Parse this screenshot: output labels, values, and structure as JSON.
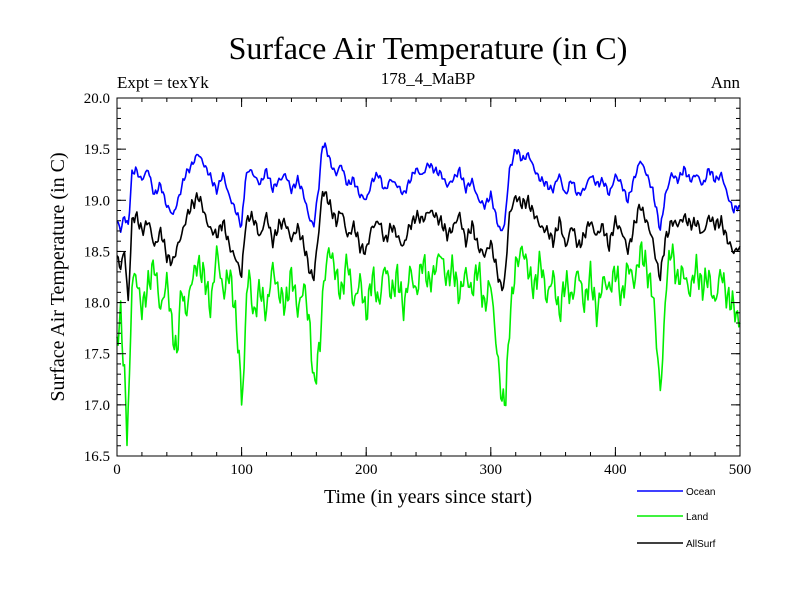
{
  "chart_data": {
    "type": "line",
    "title": "Surface Air Temperature (in C)",
    "subtitle_left": "Expt = texYk",
    "subtitle_center": "178_4_MaBP",
    "subtitle_right": "Ann",
    "xlabel": "Time (in years since start)",
    "ylabel": "Surface Air Temperature (in C)",
    "xlim": [
      0,
      500
    ],
    "ylim": [
      16.5,
      20.0
    ],
    "xticks": [
      0,
      100,
      200,
      300,
      400,
      500
    ],
    "yticks": [
      "16.5",
      "17.0",
      "17.5",
      "18.0",
      "18.5",
      "19.0",
      "19.5",
      "20.0"
    ],
    "grid": false,
    "legend_position": "bottom-right, below plot",
    "series": [
      {
        "name": "Ocean",
        "color": "#0000ff",
        "x": [
          0,
          3,
          6,
          9,
          12,
          15,
          20,
          25,
          30,
          35,
          40,
          45,
          50,
          55,
          60,
          65,
          68,
          72,
          76,
          80,
          85,
          90,
          95,
          100,
          103,
          106,
          110,
          115,
          120,
          125,
          130,
          135,
          140,
          145,
          150,
          155,
          158,
          162,
          165,
          168,
          172,
          176,
          180,
          185,
          190,
          195,
          200,
          205,
          210,
          215,
          220,
          225,
          230,
          235,
          240,
          245,
          250,
          255,
          260,
          265,
          270,
          275,
          280,
          285,
          290,
          295,
          300,
          305,
          308,
          311,
          315,
          320,
          325,
          330,
          335,
          340,
          345,
          350,
          355,
          360,
          365,
          370,
          375,
          380,
          385,
          390,
          395,
          400,
          405,
          410,
          415,
          420,
          425,
          430,
          433,
          436,
          440,
          445,
          450,
          455,
          460,
          465,
          470,
          475,
          480,
          485,
          490,
          495,
          500
        ],
        "y": [
          18.8,
          18.7,
          18.85,
          18.75,
          19.25,
          19.3,
          19.2,
          19.3,
          19.05,
          19.15,
          18.95,
          18.85,
          19.05,
          19.25,
          19.35,
          19.45,
          19.4,
          19.3,
          19.2,
          19.1,
          19.25,
          19.05,
          18.9,
          18.75,
          19.2,
          19.3,
          19.25,
          19.15,
          19.3,
          19.1,
          19.2,
          19.25,
          19.1,
          19.2,
          19.05,
          18.8,
          18.75,
          19.15,
          19.55,
          19.5,
          19.35,
          19.25,
          19.35,
          19.15,
          19.2,
          19.05,
          19.0,
          19.2,
          19.25,
          19.1,
          19.2,
          19.15,
          19.05,
          19.2,
          19.3,
          19.25,
          19.35,
          19.3,
          19.25,
          19.15,
          19.2,
          19.3,
          19.1,
          19.2,
          19.0,
          18.95,
          19.05,
          18.8,
          18.7,
          18.75,
          19.3,
          19.5,
          19.4,
          19.45,
          19.3,
          19.2,
          19.15,
          19.1,
          19.25,
          19.05,
          19.2,
          19.05,
          19.1,
          19.25,
          19.15,
          19.2,
          19.05,
          19.25,
          19.15,
          19.0,
          19.2,
          19.4,
          19.25,
          19.1,
          18.9,
          18.7,
          19.05,
          19.25,
          19.2,
          19.3,
          19.2,
          19.25,
          19.15,
          19.3,
          19.2,
          19.25,
          19.05,
          18.9,
          18.95
        ]
      },
      {
        "name": "Land",
        "color": "#00ee00",
        "x": [
          0,
          3,
          6,
          8,
          10,
          12,
          15,
          20,
          25,
          30,
          35,
          40,
          45,
          48,
          52,
          55,
          60,
          65,
          70,
          75,
          80,
          85,
          90,
          95,
          98,
          100,
          102,
          104,
          106,
          110,
          115,
          120,
          125,
          130,
          135,
          140,
          145,
          150,
          155,
          158,
          160,
          163,
          166,
          170,
          175,
          180,
          185,
          190,
          195,
          200,
          205,
          210,
          215,
          220,
          225,
          230,
          235,
          240,
          245,
          250,
          255,
          260,
          265,
          270,
          275,
          280,
          285,
          290,
          295,
          300,
          303,
          306,
          309,
          312,
          315,
          320,
          325,
          330,
          335,
          340,
          345,
          350,
          355,
          360,
          365,
          370,
          375,
          380,
          385,
          390,
          395,
          400,
          405,
          410,
          415,
          420,
          425,
          430,
          433,
          436,
          438,
          441,
          445,
          450,
          455,
          460,
          465,
          470,
          475,
          480,
          485,
          490,
          495,
          500
        ],
        "y": [
          17.6,
          17.9,
          17.3,
          16.7,
          17.2,
          18.2,
          18.3,
          17.9,
          18.2,
          18.35,
          17.95,
          18.2,
          17.7,
          17.5,
          18.15,
          17.9,
          18.2,
          18.4,
          18.25,
          17.95,
          18.5,
          18.1,
          18.3,
          17.9,
          17.5,
          17.05,
          17.3,
          18.1,
          18.3,
          17.85,
          18.15,
          17.9,
          18.35,
          18.1,
          17.95,
          18.3,
          17.9,
          18.2,
          17.7,
          17.2,
          17.35,
          17.6,
          18.2,
          18.55,
          18.3,
          18.1,
          18.4,
          18.0,
          18.2,
          17.9,
          18.25,
          18.0,
          18.35,
          18.1,
          18.25,
          17.95,
          18.3,
          18.1,
          18.4,
          18.2,
          18.3,
          18.5,
          18.2,
          18.35,
          18.05,
          18.3,
          18.1,
          18.35,
          17.95,
          18.2,
          17.8,
          17.4,
          17.0,
          17.1,
          17.8,
          18.35,
          18.55,
          18.3,
          18.15,
          18.4,
          18.05,
          18.25,
          17.9,
          18.2,
          18.05,
          18.3,
          18.0,
          18.25,
          17.9,
          18.2,
          18.15,
          18.3,
          18.05,
          18.35,
          18.2,
          18.5,
          18.35,
          18.1,
          17.6,
          17.15,
          17.5,
          18.2,
          18.55,
          18.2,
          18.3,
          18.1,
          18.35,
          18.15,
          18.25,
          18.0,
          18.3,
          18.05,
          17.95,
          17.8
        ]
      },
      {
        "name": "AllSurf",
        "color": "#000000",
        "x": [
          0,
          3,
          6,
          9,
          12,
          15,
          20,
          25,
          30,
          35,
          40,
          45,
          50,
          55,
          60,
          65,
          68,
          72,
          76,
          80,
          85,
          90,
          95,
          100,
          103,
          106,
          110,
          115,
          120,
          125,
          130,
          135,
          140,
          145,
          150,
          155,
          158,
          162,
          165,
          168,
          172,
          176,
          180,
          185,
          190,
          195,
          200,
          205,
          210,
          215,
          220,
          225,
          230,
          235,
          240,
          245,
          250,
          255,
          260,
          265,
          270,
          275,
          280,
          285,
          290,
          295,
          300,
          305,
          308,
          311,
          315,
          320,
          325,
          330,
          335,
          340,
          345,
          350,
          355,
          360,
          365,
          370,
          375,
          380,
          385,
          390,
          395,
          400,
          405,
          410,
          415,
          420,
          425,
          430,
          433,
          436,
          440,
          445,
          450,
          455,
          460,
          465,
          470,
          475,
          480,
          485,
          490,
          495,
          500
        ],
        "y": [
          18.45,
          18.35,
          18.5,
          18.0,
          18.8,
          18.85,
          18.7,
          18.8,
          18.55,
          18.7,
          18.45,
          18.4,
          18.6,
          18.8,
          18.95,
          19.05,
          18.95,
          18.8,
          18.7,
          18.65,
          18.8,
          18.55,
          18.45,
          18.25,
          18.75,
          18.85,
          18.8,
          18.65,
          18.85,
          18.6,
          18.75,
          18.8,
          18.6,
          18.75,
          18.55,
          18.3,
          18.25,
          18.7,
          19.1,
          19.05,
          18.9,
          18.8,
          18.9,
          18.65,
          18.75,
          18.55,
          18.5,
          18.75,
          18.8,
          18.6,
          18.75,
          18.65,
          18.55,
          18.75,
          18.85,
          18.8,
          18.9,
          18.85,
          18.8,
          18.65,
          18.75,
          18.85,
          18.6,
          18.75,
          18.55,
          18.45,
          18.6,
          18.3,
          18.15,
          18.2,
          18.85,
          19.05,
          18.95,
          19.0,
          18.85,
          18.75,
          18.7,
          18.6,
          18.8,
          18.55,
          18.75,
          18.55,
          18.65,
          18.8,
          18.65,
          18.75,
          18.55,
          18.8,
          18.7,
          18.5,
          18.75,
          18.95,
          18.8,
          18.6,
          18.4,
          18.25,
          18.6,
          18.8,
          18.75,
          18.85,
          18.75,
          18.8,
          18.65,
          18.85,
          18.75,
          18.8,
          18.6,
          18.5,
          18.55
        ]
      }
    ]
  }
}
